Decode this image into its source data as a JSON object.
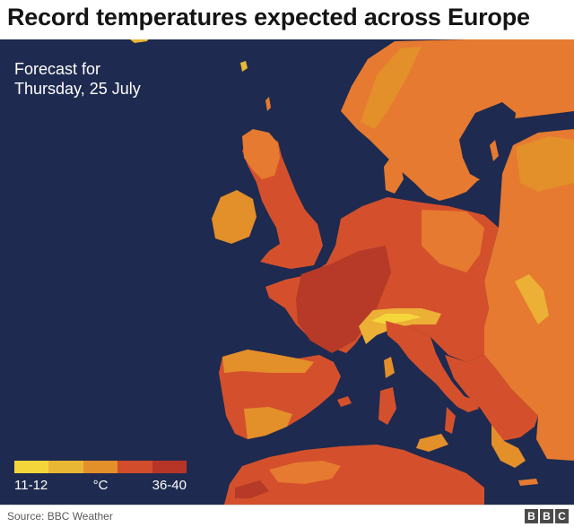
{
  "headline": "Record temperatures expected across Europe",
  "forecast": {
    "line1": "Forecast for",
    "line2": "Thursday, 25 July"
  },
  "legend": {
    "min_label": "11-12",
    "unit_label": "°C",
    "max_label": "36-40",
    "colors": [
      "#f5d63a",
      "#eab734",
      "#e38f2a",
      "#d24d2b",
      "#b63527"
    ]
  },
  "colors": {
    "sea": "#1e2a4f",
    "land_warm": "#e67a30",
    "land_hot": "#d4502c",
    "land_hottest": "#b63a27",
    "land_cool": "#ebb035"
  },
  "source": "Source: BBC Weather",
  "logo": [
    "B",
    "B",
    "C"
  ]
}
